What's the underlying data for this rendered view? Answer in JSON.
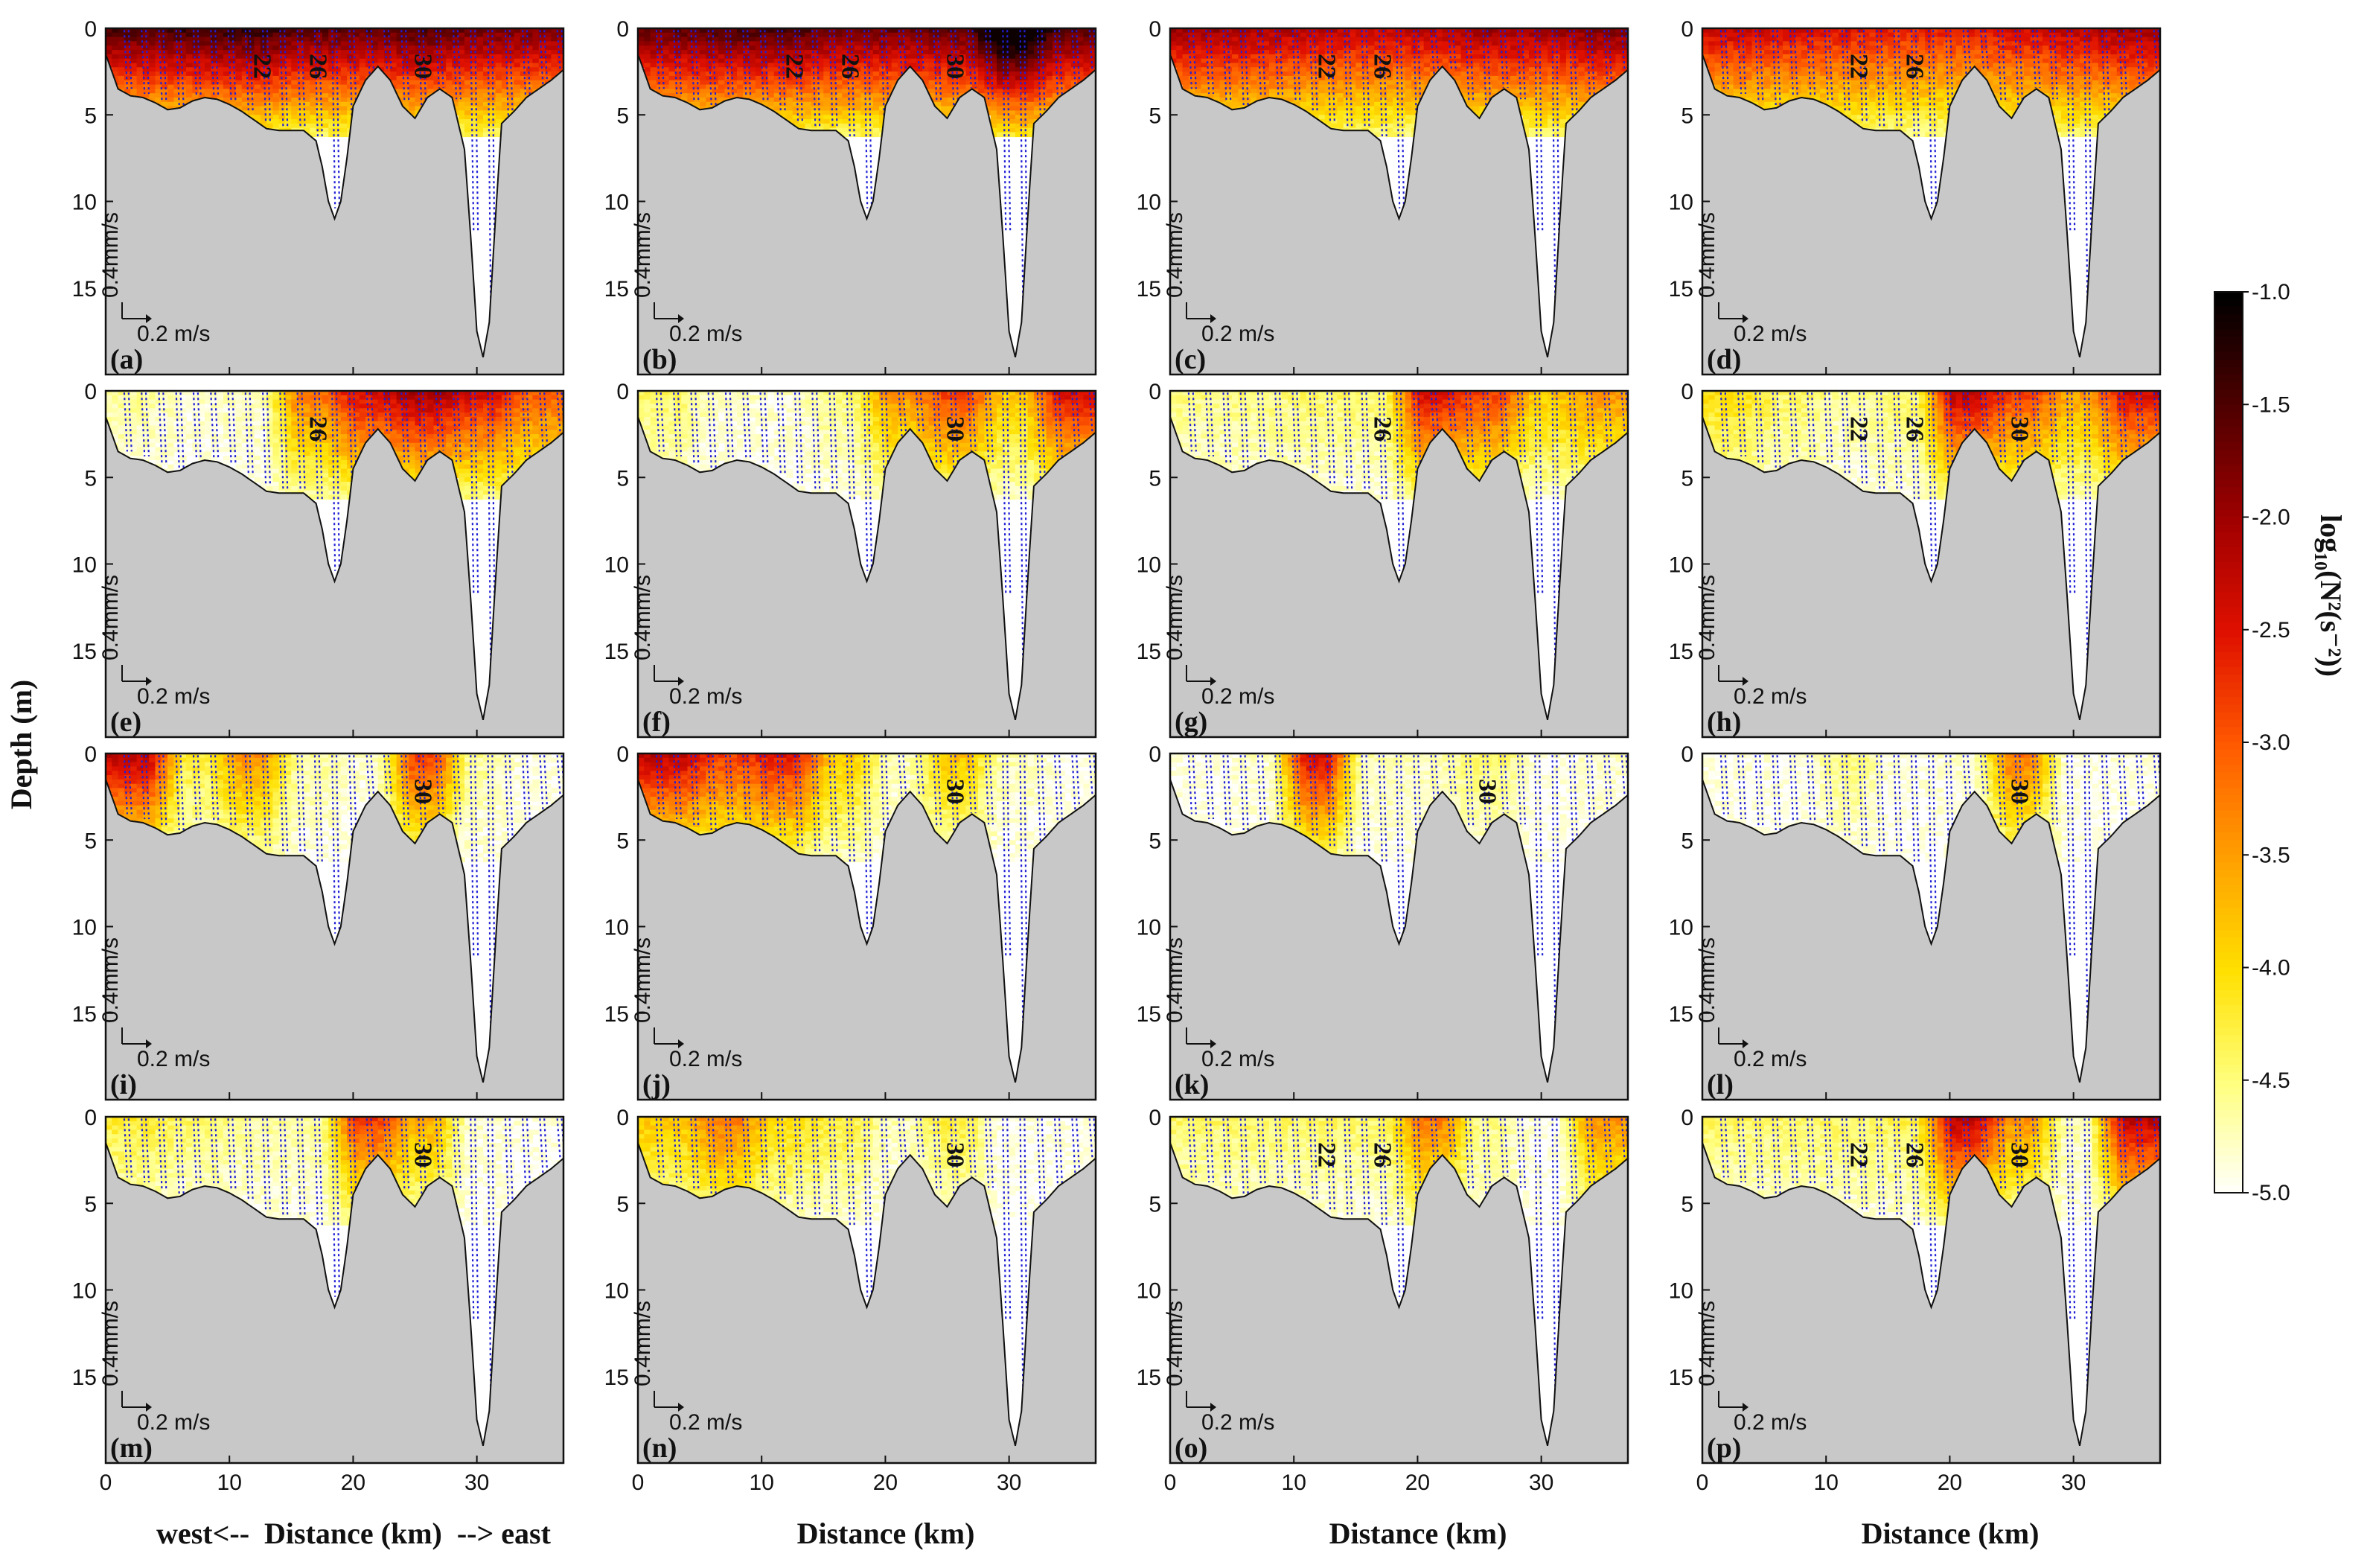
{
  "figure": {
    "y_axis_title": "Depth (m)",
    "first_x_title": "west<--  Distance (km)  --> east",
    "x_title": "Distance (km)",
    "colorbar_label": "log₁₀(N²(s⁻²))",
    "vector_scale_vertical": "0.4mm/s",
    "vector_scale_horizontal": "0.2 m/s",
    "colors": {
      "seabed": "#c8c8c8",
      "vector": "#1f1fd6",
      "colormap": [
        "#ffffff",
        "#ffff80",
        "#ffe000",
        "#ffa000",
        "#ff5a00",
        "#e01000",
        "#a00000",
        "#500000",
        "#000000"
      ]
    }
  },
  "chart_data": {
    "type": "heatmap",
    "description_variable": "log10(N^2) buoyancy frequency squared with current vectors along a west-east section",
    "xlim": [
      0,
      37
    ],
    "ylim": [
      0,
      20
    ],
    "x_ticks": [
      0,
      10,
      20,
      30
    ],
    "y_ticks": [
      0,
      5,
      10,
      15
    ],
    "colorbar": {
      "min": -5.0,
      "max": -1.0,
      "ticks": [
        "-1.0",
        "-1.5",
        "-2.0",
        "-2.5",
        "-3.0",
        "-3.5",
        "-4.0",
        "-4.5",
        "-5.0"
      ]
    },
    "bathymetry": {
      "distance_km": [
        0,
        1,
        2,
        3,
        4,
        5,
        6,
        7,
        8,
        9,
        10,
        11,
        12,
        13,
        14,
        15,
        16,
        17,
        17.5,
        18,
        18.5,
        19,
        19.5,
        20,
        21,
        22,
        23,
        24,
        25,
        26,
        27,
        28,
        29,
        29.5,
        30,
        30.5,
        31,
        31.5,
        32,
        33,
        34,
        35,
        36,
        37
      ],
      "depth_m": [
        1.5,
        3.5,
        3.9,
        4.0,
        4.3,
        4.7,
        4.6,
        4.2,
        4.0,
        4.1,
        4.4,
        4.8,
        5.3,
        5.8,
        5.9,
        5.9,
        5.9,
        6.5,
        8.0,
        10.0,
        11.0,
        10.0,
        7.5,
        4.5,
        3.0,
        2.2,
        3.0,
        4.5,
        5.2,
        4.0,
        3.5,
        4.0,
        7.0,
        12.0,
        17.5,
        19.0,
        17.0,
        11.0,
        5.5,
        4.8,
        4.0,
        3.5,
        3.0,
        2.4
      ]
    },
    "panels": [
      {
        "tag": "(a)",
        "contours": [
          "22",
          "26",
          "30"
        ],
        "strat": [
          3.5,
          3.6,
          3.7,
          3.4,
          3.4,
          3.5,
          3.3,
          3.2
        ]
      },
      {
        "tag": "(b)",
        "contours": [
          "22",
          "26",
          "30"
        ],
        "strat": [
          3.4,
          3.5,
          3.5,
          3.3,
          3.3,
          3.4,
          4.5,
          3.5
        ]
      },
      {
        "tag": "(c)",
        "contours": [
          "22",
          "26"
        ],
        "strat": [
          3.0,
          2.9,
          2.8,
          2.7,
          2.8,
          3.0,
          3.0,
          3.2
        ]
      },
      {
        "tag": "(d)",
        "contours": [
          "22",
          "26"
        ],
        "strat": [
          2.7,
          2.6,
          2.5,
          2.4,
          2.4,
          2.6,
          2.8,
          3.0
        ]
      },
      {
        "tag": "(e)",
        "contours": [
          "26"
        ],
        "strat": [
          0.4,
          0.2,
          0.3,
          1.8,
          2.6,
          3.0,
          2.6,
          2.0
        ]
      },
      {
        "tag": "(f)",
        "contours": [
          "30"
        ],
        "strat": [
          0.6,
          0.2,
          0.2,
          0.5,
          1.6,
          2.2,
          1.2,
          2.6
        ]
      },
      {
        "tag": "(g)",
        "contours": [
          "26"
        ],
        "strat": [
          0.5,
          0.5,
          0.6,
          0.6,
          2.6,
          2.2,
          1.2,
          1.6
        ]
      },
      {
        "tag": "(h)",
        "contours": [
          "22",
          "30",
          "26"
        ],
        "strat": [
          1.0,
          0.6,
          0.4,
          0.6,
          2.8,
          2.2,
          1.5,
          2.6
        ]
      },
      {
        "tag": "(i)",
        "contours": [
          "30"
        ],
        "strat": [
          2.8,
          0.8,
          1.6,
          0.4,
          0.2,
          2.2,
          0.4,
          0.1
        ]
      },
      {
        "tag": "(j)",
        "contours": [
          "30"
        ],
        "strat": [
          2.8,
          2.2,
          2.5,
          1.2,
          0.3,
          1.2,
          0.3,
          0.1
        ]
      },
      {
        "tag": "(k)",
        "contours": [
          "30"
        ],
        "strat": [
          0.1,
          0.2,
          2.6,
          0.3,
          0.3,
          0.6,
          0.1,
          0.2
        ]
      },
      {
        "tag": "(l)",
        "contours": [
          "30"
        ],
        "strat": [
          0.1,
          0.1,
          0.5,
          0.1,
          0.2,
          1.8,
          0.1,
          0.1
        ]
      },
      {
        "tag": "(m)",
        "contours": [
          "30"
        ],
        "strat": [
          0.8,
          0.6,
          0.4,
          0.4,
          2.2,
          1.4,
          0.2,
          0.1
        ]
      },
      {
        "tag": "(n)",
        "contours": [
          "30"
        ],
        "strat": [
          1.2,
          1.8,
          1.0,
          0.8,
          0.3,
          0.8,
          0.1,
          0.1
        ]
      },
      {
        "tag": "(o)",
        "contours": [
          "22",
          "26"
        ],
        "strat": [
          0.6,
          0.6,
          0.6,
          0.6,
          1.8,
          0.5,
          0.1,
          1.6
        ]
      },
      {
        "tag": "(p)",
        "contours": [
          "22",
          "26",
          "30"
        ],
        "strat": [
          0.6,
          0.6,
          0.6,
          0.7,
          2.8,
          1.6,
          0.3,
          2.8
        ]
      }
    ]
  }
}
